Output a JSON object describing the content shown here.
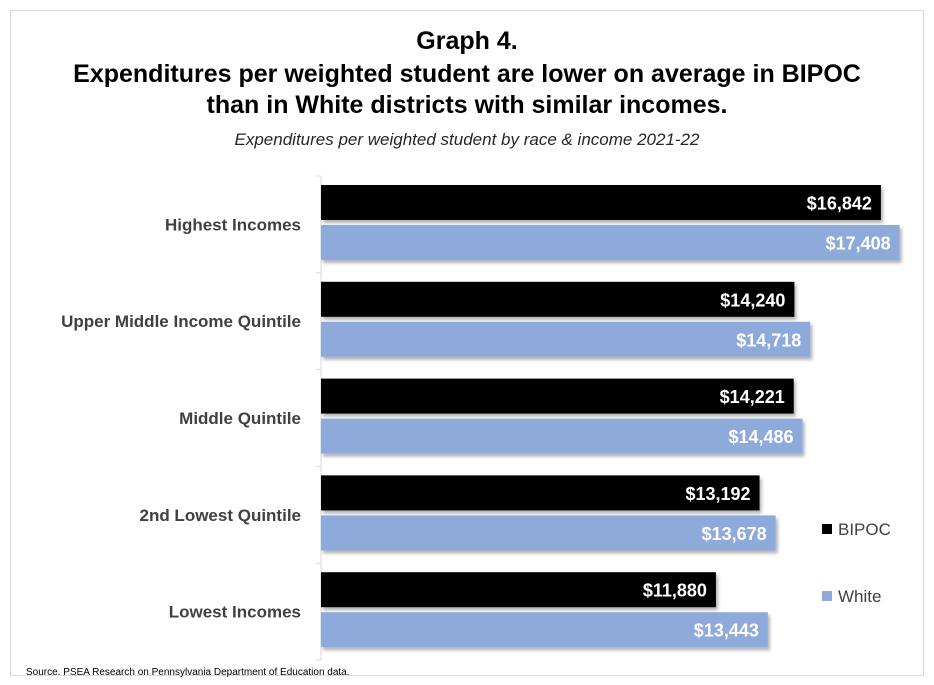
{
  "title_lines": [
    "Graph 4.",
    "Expenditures per weighted student are lower on average in BIPOC",
    "than in White districts with similar incomes."
  ],
  "subtitle": "Expenditures per weighted student  by race & income 2021-22",
  "source": "Source. PSEA Research on Pennsylvania Department of Education data.",
  "colors": {
    "bipoc": "#000000",
    "white": "#8eaadb",
    "axis": "#d9d9d9",
    "label": "#404040"
  },
  "chart_data": {
    "type": "bar",
    "orientation": "horizontal",
    "title": "Graph 4. Expenditures per weighted student are lower on average in BIPOC than in White districts with similar incomes.",
    "subtitle": "Expenditures per weighted student  by race & income 2021-22",
    "categories": [
      "Highest Incomes",
      "Upper Middle Income Quintile",
      "Middle Quintile",
      "2nd Lowest Quintile",
      "Lowest Incomes"
    ],
    "series": [
      {
        "name": "BIPOC",
        "values": [
          16842,
          14240,
          14221,
          13192,
          11880
        ],
        "labels": [
          "$16,842",
          "$14,240",
          "$14,221",
          "$13,192",
          "$11,880"
        ]
      },
      {
        "name": "White",
        "values": [
          17408,
          14718,
          14486,
          13678,
          13443
        ],
        "labels": [
          "$17,408",
          "$14,718",
          "$14,486",
          "$13,678",
          "$13,443"
        ]
      }
    ],
    "xlim": [
      0,
      18500
    ],
    "grid": false,
    "legend_position": "right"
  }
}
